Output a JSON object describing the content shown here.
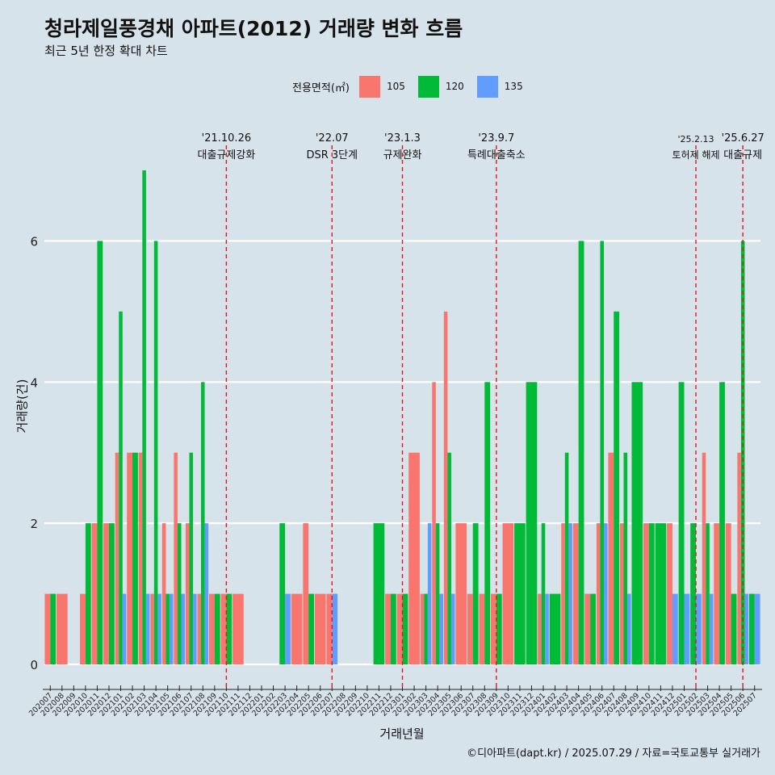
{
  "title": "청라제일풍경채 아파트(2012) 거래량 변화 흐름",
  "subtitle": "최근 5년 한정 확대 차트",
  "caption": "©디아파트(dapt.kr) / 2025.07.29 / 자료=국토교통부 실거래가",
  "legend": {
    "title": "전용면적(㎡)",
    "items": [
      {
        "label": "105",
        "color": "#f8766d"
      },
      {
        "label": "120",
        "color": "#00ba38"
      },
      {
        "label": "135",
        "color": "#619cff"
      }
    ]
  },
  "chart_data": {
    "type": "bar",
    "xlabel": "거래년월",
    "ylabel": "거래량(건)",
    "ylim": [
      0,
      7
    ],
    "yticks": [
      0,
      2,
      4,
      6
    ],
    "grid": true,
    "legend_position": "top",
    "categories": [
      "202007",
      "202008",
      "202009",
      "202010",
      "202011",
      "202012",
      "202101",
      "202102",
      "202103",
      "202104",
      "202105",
      "202106",
      "202107",
      "202108",
      "202109",
      "202110",
      "202111",
      "202112",
      "202201",
      "202202",
      "202203",
      "202204",
      "202205",
      "202206",
      "202207",
      "202208",
      "202209",
      "202210",
      "202211",
      "202212",
      "202301",
      "202302",
      "202303",
      "202304",
      "202305",
      "202306",
      "202307",
      "202308",
      "202309",
      "202310",
      "202311",
      "202312",
      "202401",
      "202402",
      "202403",
      "202404",
      "202405",
      "202406",
      "202407",
      "202408",
      "202409",
      "202410",
      "202411",
      "202412",
      "202501",
      "202502",
      "202503",
      "202504",
      "202505",
      "202506",
      "202507"
    ],
    "series": [
      {
        "name": "105",
        "color": "#f8766d",
        "values": [
          1,
          1,
          null,
          1,
          2,
          2,
          3,
          3,
          3,
          1,
          2,
          3,
          2,
          1,
          1,
          1,
          1,
          null,
          null,
          null,
          null,
          1,
          2,
          1,
          1,
          null,
          null,
          null,
          null,
          1,
          1,
          3,
          1,
          4,
          5,
          2,
          1,
          1,
          1,
          2,
          null,
          null,
          1,
          null,
          2,
          2,
          1,
          2,
          3,
          2,
          null,
          2,
          null,
          2,
          null,
          null,
          3,
          2,
          2,
          3,
          null
        ]
      },
      {
        "name": "120",
        "color": "#00ba38",
        "values": [
          1,
          null,
          null,
          2,
          6,
          2,
          5,
          3,
          7,
          6,
          1,
          2,
          3,
          4,
          1,
          1,
          null,
          null,
          null,
          null,
          2,
          null,
          1,
          null,
          null,
          null,
          null,
          null,
          2,
          1,
          1,
          null,
          1,
          2,
          3,
          null,
          2,
          4,
          1,
          null,
          2,
          4,
          2,
          1,
          3,
          6,
          1,
          6,
          5,
          3,
          4,
          2,
          2,
          null,
          4,
          2,
          2,
          4,
          1,
          6,
          1
        ]
      },
      {
        "name": "135",
        "color": "#619cff",
        "values": [
          null,
          null,
          null,
          null,
          null,
          null,
          1,
          null,
          1,
          1,
          1,
          1,
          1,
          2,
          null,
          null,
          null,
          null,
          null,
          null,
          1,
          null,
          null,
          null,
          1,
          null,
          null,
          null,
          null,
          null,
          null,
          null,
          2,
          1,
          1,
          null,
          null,
          null,
          null,
          null,
          null,
          null,
          1,
          null,
          2,
          null,
          null,
          2,
          null,
          1,
          null,
          null,
          null,
          1,
          1,
          1,
          1,
          null,
          null,
          1,
          1
        ]
      }
    ],
    "events": [
      {
        "date": "'21.10.26",
        "label": "대출규제강화",
        "category": "202110"
      },
      {
        "date": "'22.07",
        "label": "DSR 3단계",
        "category": "202207"
      },
      {
        "date": "'23.1.3",
        "label": "규제완화",
        "category": "202301"
      },
      {
        "date": "'23.9.7",
        "label": "특례대출축소",
        "category": "202309"
      },
      {
        "date": "'25.2.13",
        "label": "토허제 해제",
        "category": "202502"
      },
      {
        "date": "'25.6.27",
        "label": "대출규제",
        "category": "202506"
      }
    ]
  }
}
